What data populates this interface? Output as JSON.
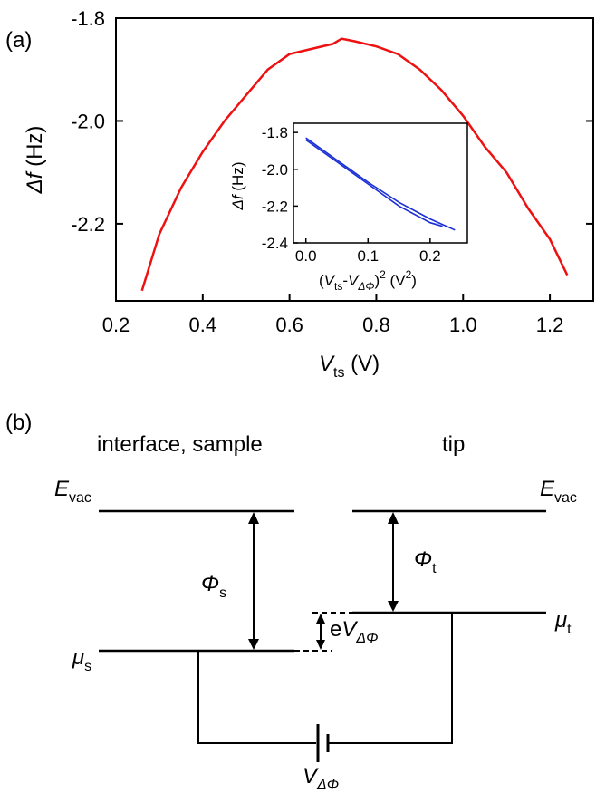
{
  "panels": {
    "a": "(a)",
    "b": "(b)"
  },
  "chart_data": [
    {
      "type": "line",
      "panel": "(a)",
      "xlabel": {
        "main": "V",
        "sub": "ts",
        "unit": " (V)"
      },
      "ylabel": {
        "main": "Δf",
        "unit": " (Hz)"
      },
      "xlim": [
        0.2,
        1.3
      ],
      "ylim": [
        -2.35,
        -1.8
      ],
      "xticks": [
        0.2,
        0.4,
        0.6,
        0.8,
        1.0,
        1.2
      ],
      "xtick_labels": [
        "0.2",
        "0.4",
        "0.6",
        "0.8",
        "1.0",
        "1.2"
      ],
      "yticks": [
        -1.8,
        -2.0,
        -2.2
      ],
      "ytick_labels": [
        "-1.8",
        "-2.0",
        "-2.2"
      ],
      "color": "#ee1111",
      "series": [
        {
          "x": [
            0.26,
            0.3,
            0.35,
            0.4,
            0.45,
            0.5,
            0.55,
            0.6,
            0.65,
            0.7,
            0.72,
            0.75,
            0.8,
            0.85,
            0.9,
            0.95,
            1.0,
            1.05,
            1.1,
            1.15,
            1.2,
            1.24
          ],
          "y": [
            -2.33,
            -2.22,
            -2.13,
            -2.06,
            -2.0,
            -1.95,
            -1.9,
            -1.87,
            -1.86,
            -1.85,
            -1.84,
            -1.845,
            -1.855,
            -1.87,
            -1.9,
            -1.94,
            -1.99,
            -2.05,
            -2.1,
            -2.17,
            -2.23,
            -2.3
          ]
        }
      ]
    },
    {
      "type": "line",
      "panel": "inset",
      "xlabel": {
        "open": "(",
        "v1": "V",
        "s1": "ts",
        "dash": "-",
        "v2": "V",
        "s2": "ΔΦ",
        "close": ")",
        "pow": "2",
        "unit": " (V",
        "unitpow": "2",
        "unitclose": ")"
      },
      "ylabel": {
        "main": "Δf",
        "unit": " (Hz)"
      },
      "xlim": [
        -0.02,
        0.26
      ],
      "ylim": [
        -2.4,
        -1.75
      ],
      "xticks": [
        0.0,
        0.1,
        0.2
      ],
      "xtick_labels": [
        "0.0",
        "0.1",
        "0.2"
      ],
      "yticks": [
        -1.8,
        -2.0,
        -2.2,
        -2.4
      ],
      "ytick_labels": [
        "-1.8",
        "-2.0",
        "-2.2",
        "-2.4"
      ],
      "color": "#1a2fd6",
      "series": [
        {
          "x": [
            0.0,
            0.05,
            0.1,
            0.15,
            0.2,
            0.24
          ],
          "y": [
            -1.83,
            -1.95,
            -2.07,
            -2.18,
            -2.27,
            -2.33
          ]
        },
        {
          "x": [
            0.0,
            0.05,
            0.1,
            0.15,
            0.2,
            0.22
          ],
          "y": [
            -1.84,
            -1.96,
            -2.08,
            -2.2,
            -2.29,
            -2.31
          ]
        }
      ]
    }
  ],
  "diagram": {
    "left_label": "interface, sample",
    "right_label": "tip",
    "evac_left": {
      "main": "E",
      "sub": "vac"
    },
    "evac_right": {
      "main": "E",
      "sub": "vac"
    },
    "phi_s": {
      "main": "Φ",
      "sub": "s"
    },
    "phi_t": {
      "main": "Φ",
      "sub": "t"
    },
    "mu_s": {
      "main": "μ",
      "sub": "s"
    },
    "mu_t": {
      "main": "μ",
      "sub": "t"
    },
    "evdphi": {
      "pre": "e",
      "main": "V",
      "sub": "ΔΦ"
    },
    "v_dphi": {
      "main": "V",
      "sub": "ΔΦ"
    }
  }
}
